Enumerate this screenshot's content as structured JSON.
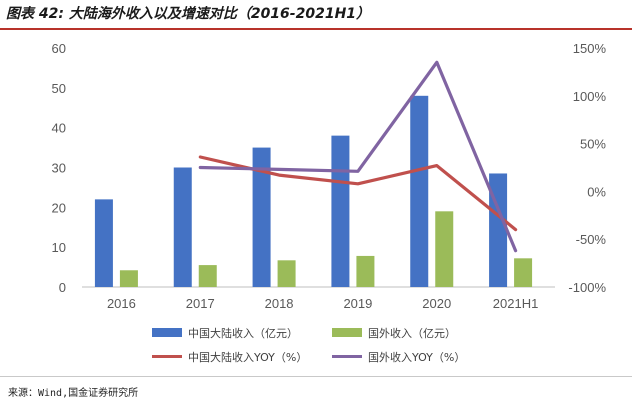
{
  "title": "图表 42: 大陆海外收入以及增速对比（2016-2021H1）",
  "source": "来源：Wind,国金证券研究所",
  "colors": {
    "domestic_revenue": "#4472c4",
    "overseas_revenue": "#9bbb59",
    "domestic_yoy": "#c0504d",
    "overseas_yoy": "#8064a2",
    "title_rule": "#b8322a"
  },
  "chart_data": {
    "type": "bar",
    "categories": [
      "2016",
      "2017",
      "2018",
      "2019",
      "2020",
      "2021H1"
    ],
    "left_axis": {
      "min": 0,
      "max": 60,
      "ticks": [
        "0",
        "10",
        "20",
        "30",
        "40",
        "50",
        "60"
      ]
    },
    "right_axis": {
      "min": -100,
      "max": 150,
      "ticks": [
        "-100%",
        "-50%",
        "0%",
        "50%",
        "100%",
        "150%"
      ]
    },
    "series": [
      {
        "name": "中国大陆收入（亿元）",
        "type": "bar",
        "axis": "left",
        "values": [
          22,
          30,
          35,
          38,
          48,
          28.5
        ]
      },
      {
        "name": "国外收入（亿元）",
        "type": "bar",
        "axis": "left",
        "values": [
          4.2,
          5.5,
          6.7,
          7.8,
          19,
          7.2
        ]
      },
      {
        "name": "中国大陆收入YOY（%）",
        "type": "line",
        "axis": "right",
        "values": [
          null,
          36,
          17,
          8,
          27,
          -40
        ]
      },
      {
        "name": "国外收入YOY（%）",
        "type": "line",
        "axis": "right",
        "values": [
          null,
          25,
          23,
          21,
          135,
          -62
        ]
      }
    ],
    "legend_position": "bottom",
    "grid": false
  }
}
